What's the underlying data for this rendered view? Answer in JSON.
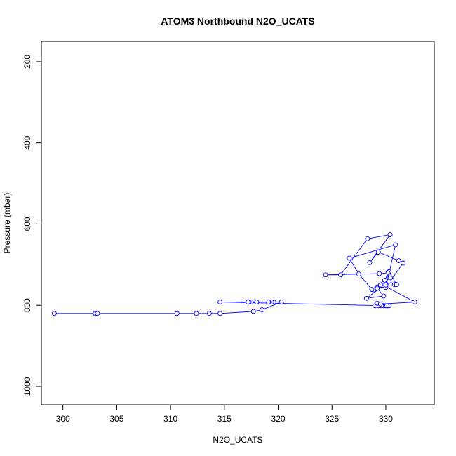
{
  "chart_data": {
    "type": "scatter",
    "title": "ATOM3 Northbound N2O_UCATS",
    "xlabel": "N2O_UCATS",
    "ylabel": "Pressure (mbar)",
    "xlim": [
      298,
      334.5
    ],
    "ylim": [
      1045,
      150
    ],
    "y_axis_inverted": true,
    "xticks": [
      300,
      305,
      310,
      315,
      320,
      325,
      330
    ],
    "yticks": [
      200,
      400,
      600,
      800,
      1000
    ],
    "grid": false,
    "legend": "none",
    "series": [
      {
        "color": "#0000ff",
        "style": "lines+points",
        "x": [
          299.2,
          303.0,
          303.2,
          310.6,
          312.4,
          313.6,
          314.6,
          317.7,
          318.5,
          320.3,
          319.6,
          319.4,
          319.2,
          319.1,
          318.0,
          317.5,
          317.3,
          317.2,
          314.6,
          329.8,
          330.0,
          330.2,
          330.3,
          330.1,
          329.6,
          329.3,
          329.0,
          329.2,
          329.5,
          332.7,
          329.8,
          329.2,
          328.9,
          329.2,
          329.8,
          328.2,
          330.3,
          330.8,
          331.0,
          330.3,
          329.9,
          328.7,
          327.5,
          326.6,
          330.9,
          330.0,
          331.6,
          331.2,
          329.3,
          328.5,
          330.4,
          328.3,
          325.8,
          324.4,
          329.4,
          330.2,
          330.0,
          329.5
        ],
        "y": [
          820,
          820,
          820,
          820,
          820,
          820,
          820,
          815,
          811,
          792,
          792,
          792,
          792,
          792,
          792,
          792,
          792,
          792,
          792,
          801,
          801,
          801,
          801,
          801,
          801,
          801,
          801,
          795,
          797,
          792,
          751,
          755,
          762,
          758,
          777,
          783,
          741,
          749,
          749,
          717,
          738,
          761,
          723,
          684,
          651,
          756,
          696,
          690,
          669,
          695,
          626,
          636,
          725,
          725,
          722,
          720,
          750,
          750
        ]
      }
    ]
  }
}
